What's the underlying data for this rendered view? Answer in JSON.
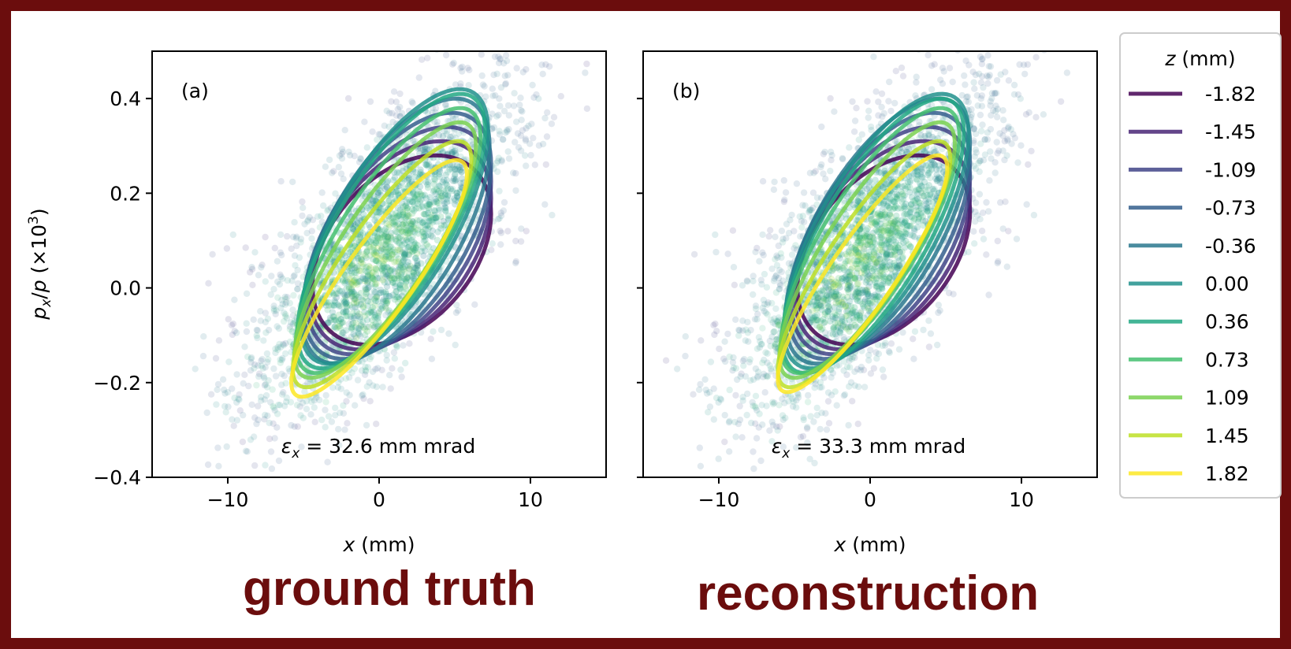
{
  "chart_data": [
    {
      "type": "scatter",
      "panel_label": "(a)",
      "emittance_annotation": "ε_x = 32.6 mm mrad",
      "caption": "ground truth",
      "xlabel": "x (mm)",
      "ylabel": "p_x/p (×10³)",
      "xlim": [
        -15,
        15
      ],
      "ylim": [
        -0.4,
        0.5
      ],
      "x_ticks": [
        "−10",
        "0",
        "10"
      ],
      "x_tick_values": [
        -10,
        0,
        10
      ],
      "y_ticks": [
        "0.4",
        "0.2",
        "0.0",
        "−0.2",
        "−0.4"
      ],
      "y_tick_values": [
        0.4,
        0.2,
        0.0,
        -0.2,
        -0.4
      ],
      "series": [
        {
          "name": "-1.82",
          "z": -1.82,
          "ellipse": {
            "cx": 1.5,
            "cy": 0.08,
            "x_half": 5.9,
            "p_half": 0.2,
            "corr": 0.38
          }
        },
        {
          "name": "-1.45",
          "z": -1.45,
          "ellipse": {
            "cx": 1.4,
            "cy": 0.09,
            "x_half": 6.0,
            "p_half": 0.22,
            "corr": 0.45
          }
        },
        {
          "name": "-1.09",
          "z": -1.09,
          "ellipse": {
            "cx": 1.3,
            "cy": 0.1,
            "x_half": 6.1,
            "p_half": 0.24,
            "corr": 0.52
          }
        },
        {
          "name": "-0.73",
          "z": -0.73,
          "ellipse": {
            "cx": 1.2,
            "cy": 0.11,
            "x_half": 6.2,
            "p_half": 0.26,
            "corr": 0.58
          }
        },
        {
          "name": "-0.36",
          "z": -0.36,
          "ellipse": {
            "cx": 1.1,
            "cy": 0.12,
            "x_half": 6.2,
            "p_half": 0.28,
            "corr": 0.64
          }
        },
        {
          "name": "0.00",
          "z": 0.0,
          "ellipse": {
            "cx": 1.0,
            "cy": 0.13,
            "x_half": 6.2,
            "p_half": 0.29,
            "corr": 0.7
          }
        },
        {
          "name": "0.36",
          "z": 0.36,
          "ellipse": {
            "cx": 0.8,
            "cy": 0.12,
            "x_half": 6.2,
            "p_half": 0.29,
            "corr": 0.74
          }
        },
        {
          "name": "0.73",
          "z": 0.73,
          "ellipse": {
            "cx": 0.6,
            "cy": 0.1,
            "x_half": 6.1,
            "p_half": 0.28,
            "corr": 0.78
          }
        },
        {
          "name": "1.09",
          "z": 1.09,
          "ellipse": {
            "cx": 0.4,
            "cy": 0.08,
            "x_half": 6.0,
            "p_half": 0.27,
            "corr": 0.82
          }
        },
        {
          "name": "1.45",
          "z": 1.45,
          "ellipse": {
            "cx": 0.2,
            "cy": 0.05,
            "x_half": 5.9,
            "p_half": 0.26,
            "corr": 0.85
          }
        },
        {
          "name": "1.82",
          "z": 1.82,
          "ellipse": {
            "cx": 0.0,
            "cy": 0.02,
            "x_half": 5.8,
            "p_half": 0.25,
            "corr": 0.88
          }
        }
      ]
    },
    {
      "type": "scatter",
      "panel_label": "(b)",
      "emittance_annotation": "ε_x = 33.3 mm mrad",
      "caption": "reconstruction",
      "xlabel": "x (mm)",
      "ylabel": "",
      "xlim": [
        -15,
        15
      ],
      "ylim": [
        -0.4,
        0.5
      ],
      "x_ticks": [
        "−10",
        "0",
        "10"
      ],
      "x_tick_values": [
        -10,
        0,
        10
      ],
      "y_ticks": [],
      "y_tick_values": [
        0.4,
        0.2,
        0.0,
        -0.2,
        -0.4
      ],
      "series": [
        {
          "name": "-1.82",
          "z": -1.82,
          "ellipse": {
            "cx": 0.9,
            "cy": 0.08,
            "x_half": 5.7,
            "p_half": 0.2,
            "corr": 0.4
          }
        },
        {
          "name": "-1.45",
          "z": -1.45,
          "ellipse": {
            "cx": 0.8,
            "cy": 0.09,
            "x_half": 5.8,
            "p_half": 0.22,
            "corr": 0.47
          }
        },
        {
          "name": "-1.09",
          "z": -1.09,
          "ellipse": {
            "cx": 0.7,
            "cy": 0.1,
            "x_half": 5.9,
            "p_half": 0.24,
            "corr": 0.54
          }
        },
        {
          "name": "-0.73",
          "z": -0.73,
          "ellipse": {
            "cx": 0.6,
            "cy": 0.11,
            "x_half": 6.0,
            "p_half": 0.26,
            "corr": 0.6
          }
        },
        {
          "name": "-0.36",
          "z": -0.36,
          "ellipse": {
            "cx": 0.5,
            "cy": 0.12,
            "x_half": 6.1,
            "p_half": 0.28,
            "corr": 0.66
          }
        },
        {
          "name": "0.00",
          "z": 0.0,
          "ellipse": {
            "cx": 0.4,
            "cy": 0.12,
            "x_half": 6.1,
            "p_half": 0.29,
            "corr": 0.71
          }
        },
        {
          "name": "0.36",
          "z": 0.36,
          "ellipse": {
            "cx": 0.2,
            "cy": 0.11,
            "x_half": 6.0,
            "p_half": 0.29,
            "corr": 0.75
          }
        },
        {
          "name": "0.73",
          "z": 0.73,
          "ellipse": {
            "cx": 0.0,
            "cy": 0.1,
            "x_half": 5.9,
            "p_half": 0.28,
            "corr": 0.79
          }
        },
        {
          "name": "1.09",
          "z": 1.09,
          "ellipse": {
            "cx": -0.2,
            "cy": 0.08,
            "x_half": 5.8,
            "p_half": 0.27,
            "corr": 0.83
          }
        },
        {
          "name": "1.45",
          "z": 1.45,
          "ellipse": {
            "cx": -0.4,
            "cy": 0.05,
            "x_half": 5.7,
            "p_half": 0.26,
            "corr": 0.86
          }
        },
        {
          "name": "1.82",
          "z": 1.82,
          "ellipse": {
            "cx": -0.5,
            "cy": 0.03,
            "x_half": 5.6,
            "p_half": 0.25,
            "corr": 0.89
          }
        }
      ]
    }
  ],
  "legend": {
    "title": "z (mm)",
    "placement": "right",
    "entries": [
      "-1.82",
      "-1.45",
      "-1.09",
      "-0.73",
      "-0.36",
      "0.00",
      "0.36",
      "0.73",
      "1.09",
      "1.45",
      "1.82"
    ],
    "colors": [
      "#440154",
      "#482475",
      "#414487",
      "#355f8d",
      "#2a788e",
      "#21918c",
      "#22a884",
      "#44bf70",
      "#7ad151",
      "#bddf26",
      "#fde725"
    ]
  },
  "style": {
    "border_color": "#6b0d0d",
    "caption_color": "#6b0d0d",
    "scatter_colormap": "viridis"
  }
}
